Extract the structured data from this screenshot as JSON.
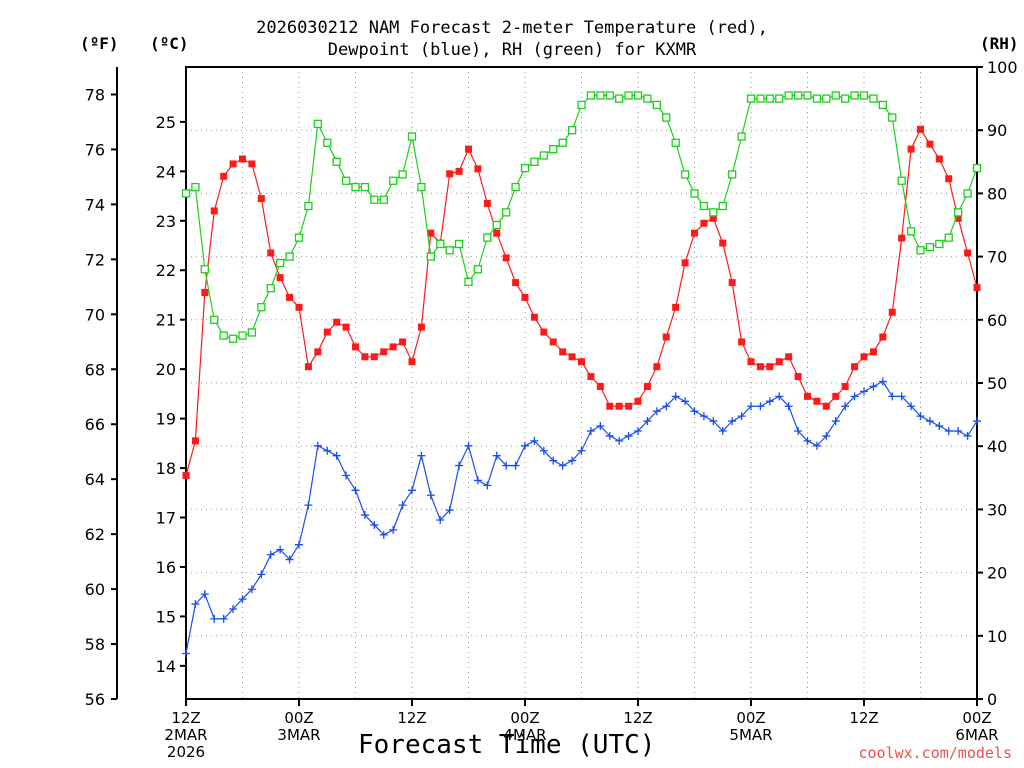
{
  "title_line1": "2026030212 NAM Forecast 2-meter Temperature (red),",
  "title_line2": "Dewpoint (blue), RH (green) for KXMR",
  "unit_f": "(ºF)",
  "unit_c": "(ºC)",
  "unit_rh": "(RH)",
  "credit": "coolwx.com/models",
  "chart_data": {
    "type": "line",
    "title": "2026030212 NAM Forecast 2-meter Temperature (red), Dewpoint (blue), RH (green) for KXMR",
    "xlabel": "Forecast Time (UTC)",
    "xlim_hours": [
      0,
      84
    ],
    "x_step_hours": 1,
    "y_axes": {
      "fahrenheit": {
        "label": "(ºF)",
        "ylim": [
          56,
          79
        ],
        "ticks": [
          "56",
          "58",
          "60",
          "62",
          "64",
          "66",
          "68",
          "70",
          "72",
          "74",
          "76",
          "78"
        ]
      },
      "celsius": {
        "label": "(ºC)",
        "ylim": [
          13.33,
          26.11
        ],
        "ticks": [
          "14",
          "15",
          "16",
          "17",
          "18",
          "19",
          "20",
          "21",
          "22",
          "23",
          "24",
          "25"
        ]
      },
      "rh": {
        "label": "(RH)",
        "ylim": [
          0,
          100
        ],
        "ticks": [
          "0",
          "10",
          "20",
          "30",
          "40",
          "50",
          "60",
          "70",
          "80",
          "90",
          "100"
        ]
      }
    },
    "x_ticks": [
      {
        "hour": 0,
        "lines": [
          "12Z",
          "2MAR",
          "2026"
        ]
      },
      {
        "hour": 12,
        "lines": [
          "00Z",
          "3MAR"
        ]
      },
      {
        "hour": 24,
        "lines": [
          "12Z"
        ]
      },
      {
        "hour": 36,
        "lines": [
          "00Z",
          "4MAR"
        ]
      },
      {
        "hour": 48,
        "lines": [
          "12Z"
        ]
      },
      {
        "hour": 60,
        "lines": [
          "00Z",
          "5MAR"
        ]
      },
      {
        "hour": 72,
        "lines": [
          "12Z"
        ]
      },
      {
        "hour": 84,
        "lines": [
          "00Z",
          "6MAR"
        ]
      }
    ],
    "series": [
      {
        "name": "Temperature",
        "units": "°C",
        "axis": "celsius",
        "color": "#ff1a1a",
        "marker": "filled-square",
        "values": [
          17.85,
          18.55,
          21.55,
          23.2,
          23.9,
          24.15,
          24.25,
          24.15,
          23.45,
          22.35,
          21.85,
          21.45,
          21.25,
          20.05,
          20.35,
          20.75,
          20.95,
          20.85,
          20.45,
          20.25,
          20.25,
          20.35,
          20.45,
          20.55,
          20.15,
          20.85,
          22.75,
          22.55,
          23.95,
          24.0,
          24.45,
          24.05,
          23.35,
          22.75,
          22.25,
          21.75,
          21.45,
          21.05,
          20.75,
          20.55,
          20.35,
          20.25,
          20.15,
          19.85,
          19.65,
          19.25,
          19.25,
          19.25,
          19.35,
          19.65,
          20.05,
          20.65,
          21.25,
          22.15,
          22.75,
          22.95,
          23.05,
          22.55,
          21.75,
          20.55,
          20.15,
          20.05,
          20.05,
          20.15,
          20.25,
          19.85,
          19.45,
          19.35,
          19.25,
          19.45,
          19.65,
          20.05,
          20.25,
          20.35,
          20.65,
          21.15,
          22.65,
          24.45,
          24.85,
          24.55,
          24.25,
          23.85,
          23.05,
          22.35,
          21.65
        ]
      },
      {
        "name": "Dewpoint",
        "units": "°C",
        "axis": "celsius",
        "color": "#1a4ef0",
        "marker": "plus",
        "values": [
          14.25,
          15.25,
          15.45,
          14.95,
          14.95,
          15.15,
          15.35,
          15.55,
          15.85,
          16.25,
          16.35,
          16.15,
          16.45,
          17.25,
          18.45,
          18.35,
          18.25,
          17.85,
          17.55,
          17.05,
          16.85,
          16.65,
          16.75,
          17.25,
          17.55,
          18.25,
          17.45,
          16.95,
          17.15,
          18.05,
          18.45,
          17.75,
          17.65,
          18.25,
          18.05,
          18.05,
          18.45,
          18.55,
          18.35,
          18.15,
          18.05,
          18.15,
          18.35,
          18.75,
          18.85,
          18.65,
          18.55,
          18.65,
          18.75,
          18.95,
          19.15,
          19.25,
          19.45,
          19.35,
          19.15,
          19.05,
          18.95,
          18.75,
          18.95,
          19.05,
          19.25,
          19.25,
          19.35,
          19.45,
          19.25,
          18.75,
          18.55,
          18.45,
          18.65,
          18.95,
          19.25,
          19.45,
          19.55,
          19.65,
          19.75,
          19.45,
          19.45,
          19.25,
          19.05,
          18.95,
          18.85,
          18.75,
          18.75,
          18.65,
          18.95
        ]
      },
      {
        "name": "RH",
        "units": "%",
        "axis": "rh",
        "color": "#1ad11a",
        "marker": "hollow-square",
        "values": [
          80,
          81,
          68,
          60,
          57.5,
          57,
          57.5,
          58,
          62,
          65,
          69,
          70,
          73,
          78,
          91,
          88,
          85,
          82,
          81,
          81,
          79,
          79,
          82,
          83,
          89,
          81,
          70,
          72,
          71,
          72,
          66,
          68,
          73,
          75,
          77,
          81,
          84,
          85,
          86,
          87,
          88,
          90,
          94,
          95.5,
          95.5,
          95.5,
          95,
          95.5,
          95.5,
          95,
          94,
          92,
          88,
          83,
          80,
          78,
          77,
          78,
          83,
          89,
          95,
          95,
          95,
          95,
          95.5,
          95.5,
          95.5,
          95,
          95,
          95.5,
          95,
          95.5,
          95.5,
          95,
          94,
          92,
          82,
          74,
          71,
          71.5,
          72,
          73,
          77,
          80,
          84
        ]
      }
    ]
  }
}
